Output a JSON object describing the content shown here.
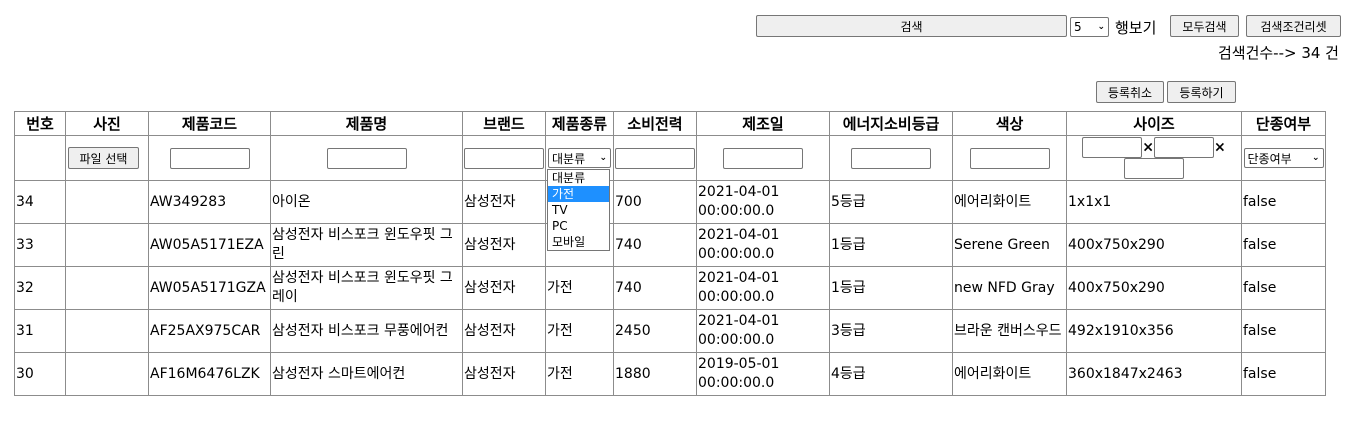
{
  "toolbar": {
    "search_label": "검색",
    "rows_value": "5",
    "rows_label": "행보기",
    "search_all_label": "모두검색",
    "reset_label": "검색조건리셋",
    "result_count_text": "검색건수--> 34 건",
    "cancel_register_label": "등록취소",
    "register_label": "등록하기"
  },
  "table": {
    "headers": [
      "번호",
      "사진",
      "제품코드",
      "제품명",
      "브랜드",
      "제품종류",
      "소비전력",
      "제조일",
      "에너지소비등급",
      "색상",
      "사이즈",
      "단종여부"
    ],
    "filters": {
      "file_button": "파일 선택",
      "category_value": "대분류",
      "size_sep": "×",
      "discontinued_value": "단종여부"
    },
    "rows": [
      {
        "no": "34",
        "photo": "",
        "code": "AW349283",
        "name": "아이온",
        "brand": "삼성전자",
        "category": "",
        "power": "700",
        "date": "2021-04-01 00:00:00.0",
        "energy": "5등급",
        "color": "에어리화이트",
        "size": "1x1x1",
        "discontinued": "false"
      },
      {
        "no": "33",
        "photo": "",
        "code": "AW05A5171EZA",
        "name": "삼성전자 비스포크 윈도우핏 그린",
        "brand": "삼성전자",
        "category": "",
        "power": "740",
        "date": "2021-04-01 00:00:00.0",
        "energy": "1등급",
        "color": "Serene Green",
        "size": "400x750x290",
        "discontinued": "false"
      },
      {
        "no": "32",
        "photo": "",
        "code": "AW05A5171GZA",
        "name": "삼성전자 비스포크 윈도우핏 그레이",
        "brand": "삼성전자",
        "category": "가전",
        "power": "740",
        "date": "2021-04-01 00:00:00.0",
        "energy": "1등급",
        "color": "new NFD Gray",
        "size": "400x750x290",
        "discontinued": "false"
      },
      {
        "no": "31",
        "photo": "",
        "code": "AF25AX975CAR",
        "name": "삼성전자 비스포크 무풍에어컨",
        "brand": "삼성전자",
        "category": "가전",
        "power": "2450",
        "date": "2021-04-01 00:00:00.0",
        "energy": "3등급",
        "color": "브라운 캔버스우드",
        "size": "492x1910x356",
        "discontinued": "false"
      },
      {
        "no": "30",
        "photo": "",
        "code": "AF16M6476LZK",
        "name": "삼성전자 스마트에어컨",
        "brand": "삼성전자",
        "category": "가전",
        "power": "1880",
        "date": "2019-05-01 00:00:00.0",
        "energy": "4등급",
        "color": "에어리화이트",
        "size": "360x1847x2463",
        "discontinued": "false"
      }
    ]
  },
  "category_dropdown": {
    "options": [
      "대분류",
      "가전",
      "TV",
      "PC",
      "모바일"
    ],
    "highlighted": "가전"
  },
  "colors": {
    "highlight": "#1e90ff",
    "border": "#8c8c8c",
    "button_bg": "#efefef"
  }
}
